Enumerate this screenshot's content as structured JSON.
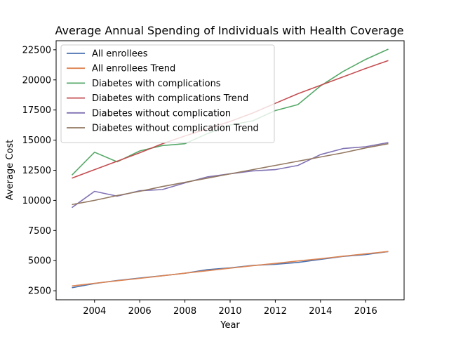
{
  "chart_data": {
    "type": "line",
    "title": "Average Annual Spending of Individuals with Health Coverage",
    "xlabel": "Year",
    "ylabel": "Average Cost",
    "xlim": [
      2002.3,
      2017.7
    ],
    "ylim": [
      1750,
      23250
    ],
    "xticks": [
      2004,
      2006,
      2008,
      2010,
      2012,
      2014,
      2016
    ],
    "yticks": [
      2500,
      5000,
      7500,
      10000,
      12500,
      15000,
      17500,
      20000,
      22500
    ],
    "grid": false,
    "legend_position": "top-left",
    "x": [
      2003,
      2004,
      2005,
      2006,
      2007,
      2008,
      2009,
      2010,
      2011,
      2012,
      2013,
      2014,
      2015,
      2016,
      2017
    ],
    "series": [
      {
        "name": "All enrollees",
        "color": "#4c72b0",
        "values": [
          2750,
          3100,
          3350,
          3550,
          3750,
          3950,
          4250,
          4400,
          4600,
          4700,
          4850,
          5100,
          5350,
          5500,
          5750
        ]
      },
      {
        "name": "All enrollees Trend",
        "color": "#dd8452",
        "values": [
          2900,
          3120,
          3330,
          3530,
          3740,
          3960,
          4160,
          4370,
          4580,
          4770,
          4970,
          5160,
          5370,
          5560,
          5760
        ]
      },
      {
        "name": "Diabetes with complications",
        "color": "#55a868",
        "values": [
          12100,
          14000,
          13200,
          14100,
          14550,
          14700,
          15550,
          16250,
          16600,
          17450,
          17950,
          19500,
          20700,
          21700,
          22550
        ]
      },
      {
        "name": "Diabetes with complications Trend",
        "color": "#c44e52",
        "values": [
          11850,
          12550,
          13250,
          13950,
          14700,
          15350,
          15950,
          16550,
          17250,
          18050,
          18850,
          19550,
          20250,
          20950,
          21600
        ]
      },
      {
        "name": "Diabetes without complication",
        "color": "#8172b3",
        "values": [
          9400,
          10750,
          10350,
          10800,
          10900,
          11450,
          11950,
          12200,
          12450,
          12550,
          12900,
          13800,
          14300,
          14450,
          14800
        ]
      },
      {
        "name": "Diabetes without complication Trend",
        "color": "#937860",
        "values": [
          9650,
          10000,
          10400,
          10750,
          11150,
          11500,
          11850,
          12200,
          12550,
          12900,
          13250,
          13600,
          13950,
          14350,
          14700
        ]
      }
    ]
  }
}
